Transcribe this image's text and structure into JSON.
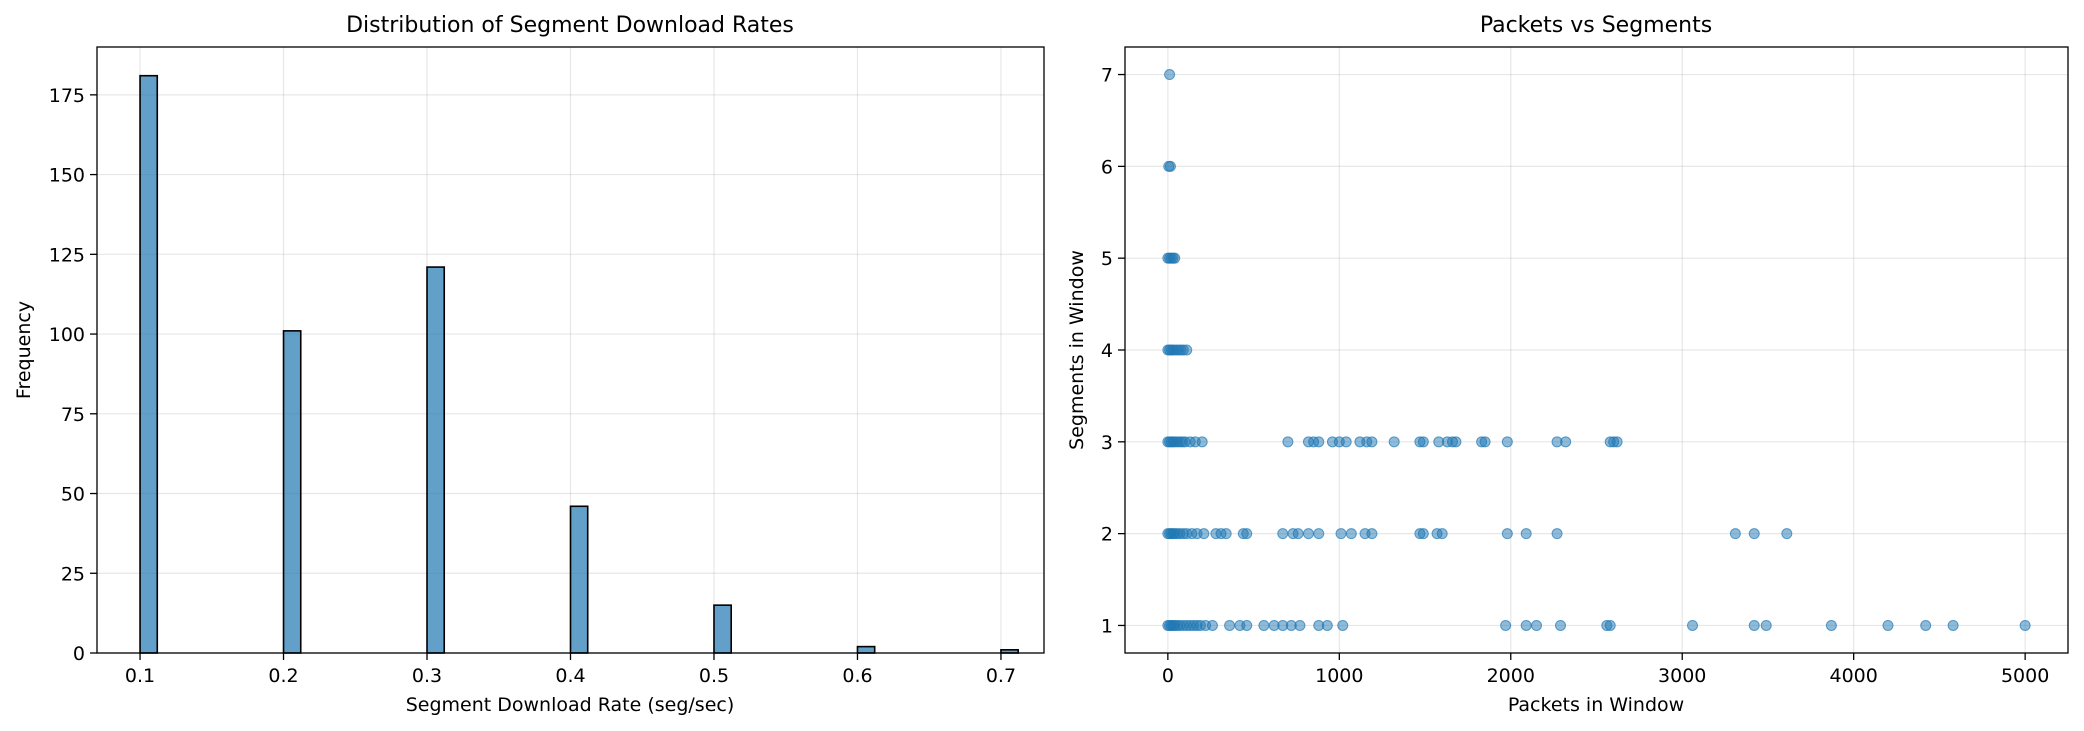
{
  "chart_data": [
    {
      "type": "bar",
      "title": "Distribution of Segment Download Rates",
      "xlabel": "Segment Download Rate (seg/sec)",
      "ylabel": "Frequency",
      "xlim": [
        0.07,
        0.73
      ],
      "ylim": [
        0,
        190
      ],
      "xticks": [
        0.1,
        0.2,
        0.3,
        0.4,
        0.5,
        0.6,
        0.7
      ],
      "xtick_labels": [
        "0.1",
        "0.2",
        "0.3",
        "0.4",
        "0.5",
        "0.6",
        "0.7"
      ],
      "yticks": [
        0,
        25,
        50,
        75,
        100,
        125,
        150,
        175
      ],
      "bin_width": 0.012,
      "grid": true,
      "bins": [
        {
          "x": 0.1,
          "value": 181
        },
        {
          "x": 0.2,
          "value": 101
        },
        {
          "x": 0.3,
          "value": 121
        },
        {
          "x": 0.4,
          "value": 46
        },
        {
          "x": 0.5,
          "value": 15
        },
        {
          "x": 0.6,
          "value": 2
        },
        {
          "x": 0.7,
          "value": 1
        }
      ]
    },
    {
      "type": "scatter",
      "title": "Packets vs Segments",
      "xlabel": "Packets in Window",
      "ylabel": "Segments in Window",
      "xlim": [
        -250,
        5250
      ],
      "ylim": [
        0.7,
        7.3
      ],
      "xticks": [
        0,
        1000,
        2000,
        3000,
        4000,
        5000
      ],
      "yticks": [
        1,
        2,
        3,
        4,
        5,
        6,
        7
      ],
      "grid": true,
      "points": [
        [
          10,
          7
        ],
        [
          5,
          6
        ],
        [
          15,
          6
        ],
        [
          0,
          5
        ],
        [
          10,
          5
        ],
        [
          20,
          5
        ],
        [
          30,
          5
        ],
        [
          40,
          5
        ],
        [
          0,
          4
        ],
        [
          10,
          4
        ],
        [
          20,
          4
        ],
        [
          30,
          4
        ],
        [
          45,
          4
        ],
        [
          60,
          4
        ],
        [
          75,
          4
        ],
        [
          90,
          4
        ],
        [
          110,
          4
        ],
        [
          0,
          3
        ],
        [
          10,
          3
        ],
        [
          20,
          3
        ],
        [
          30,
          3
        ],
        [
          40,
          3
        ],
        [
          55,
          3
        ],
        [
          70,
          3
        ],
        [
          85,
          3
        ],
        [
          100,
          3
        ],
        [
          130,
          3
        ],
        [
          160,
          3
        ],
        [
          200,
          3
        ],
        [
          700,
          3
        ],
        [
          820,
          3
        ],
        [
          850,
          3
        ],
        [
          880,
          3
        ],
        [
          960,
          3
        ],
        [
          1000,
          3
        ],
        [
          1040,
          3
        ],
        [
          1120,
          3
        ],
        [
          1160,
          3
        ],
        [
          1190,
          3
        ],
        [
          1320,
          3
        ],
        [
          1470,
          3
        ],
        [
          1490,
          3
        ],
        [
          1580,
          3
        ],
        [
          1630,
          3
        ],
        [
          1660,
          3
        ],
        [
          1680,
          3
        ],
        [
          1830,
          3
        ],
        [
          1850,
          3
        ],
        [
          1980,
          3
        ],
        [
          2270,
          3
        ],
        [
          2320,
          3
        ],
        [
          2580,
          3
        ],
        [
          2600,
          3
        ],
        [
          2620,
          3
        ],
        [
          0,
          2
        ],
        [
          10,
          2
        ],
        [
          20,
          2
        ],
        [
          30,
          2
        ],
        [
          40,
          2
        ],
        [
          55,
          2
        ],
        [
          70,
          2
        ],
        [
          90,
          2
        ],
        [
          110,
          2
        ],
        [
          140,
          2
        ],
        [
          170,
          2
        ],
        [
          210,
          2
        ],
        [
          280,
          2
        ],
        [
          310,
          2
        ],
        [
          340,
          2
        ],
        [
          440,
          2
        ],
        [
          460,
          2
        ],
        [
          670,
          2
        ],
        [
          730,
          2
        ],
        [
          760,
          2
        ],
        [
          820,
          2
        ],
        [
          880,
          2
        ],
        [
          1010,
          2
        ],
        [
          1070,
          2
        ],
        [
          1150,
          2
        ],
        [
          1190,
          2
        ],
        [
          1470,
          2
        ],
        [
          1490,
          2
        ],
        [
          1570,
          2
        ],
        [
          1600,
          2
        ],
        [
          1980,
          2
        ],
        [
          2090,
          2
        ],
        [
          2270,
          2
        ],
        [
          3310,
          2
        ],
        [
          3420,
          2
        ],
        [
          3610,
          2
        ],
        [
          0,
          1
        ],
        [
          10,
          1
        ],
        [
          20,
          1
        ],
        [
          30,
          1
        ],
        [
          40,
          1
        ],
        [
          55,
          1
        ],
        [
          70,
          1
        ],
        [
          90,
          1
        ],
        [
          110,
          1
        ],
        [
          130,
          1
        ],
        [
          150,
          1
        ],
        [
          170,
          1
        ],
        [
          190,
          1
        ],
        [
          220,
          1
        ],
        [
          260,
          1
        ],
        [
          360,
          1
        ],
        [
          420,
          1
        ],
        [
          460,
          1
        ],
        [
          560,
          1
        ],
        [
          620,
          1
        ],
        [
          670,
          1
        ],
        [
          720,
          1
        ],
        [
          770,
          1
        ],
        [
          880,
          1
        ],
        [
          930,
          1
        ],
        [
          1020,
          1
        ],
        [
          1970,
          1
        ],
        [
          2090,
          1
        ],
        [
          2150,
          1
        ],
        [
          2290,
          1
        ],
        [
          2560,
          1
        ],
        [
          2580,
          1
        ],
        [
          3060,
          1
        ],
        [
          3420,
          1
        ],
        [
          3490,
          1
        ],
        [
          3870,
          1
        ],
        [
          4200,
          1
        ],
        [
          4420,
          1
        ],
        [
          4580,
          1
        ],
        [
          5000,
          1
        ]
      ]
    }
  ]
}
